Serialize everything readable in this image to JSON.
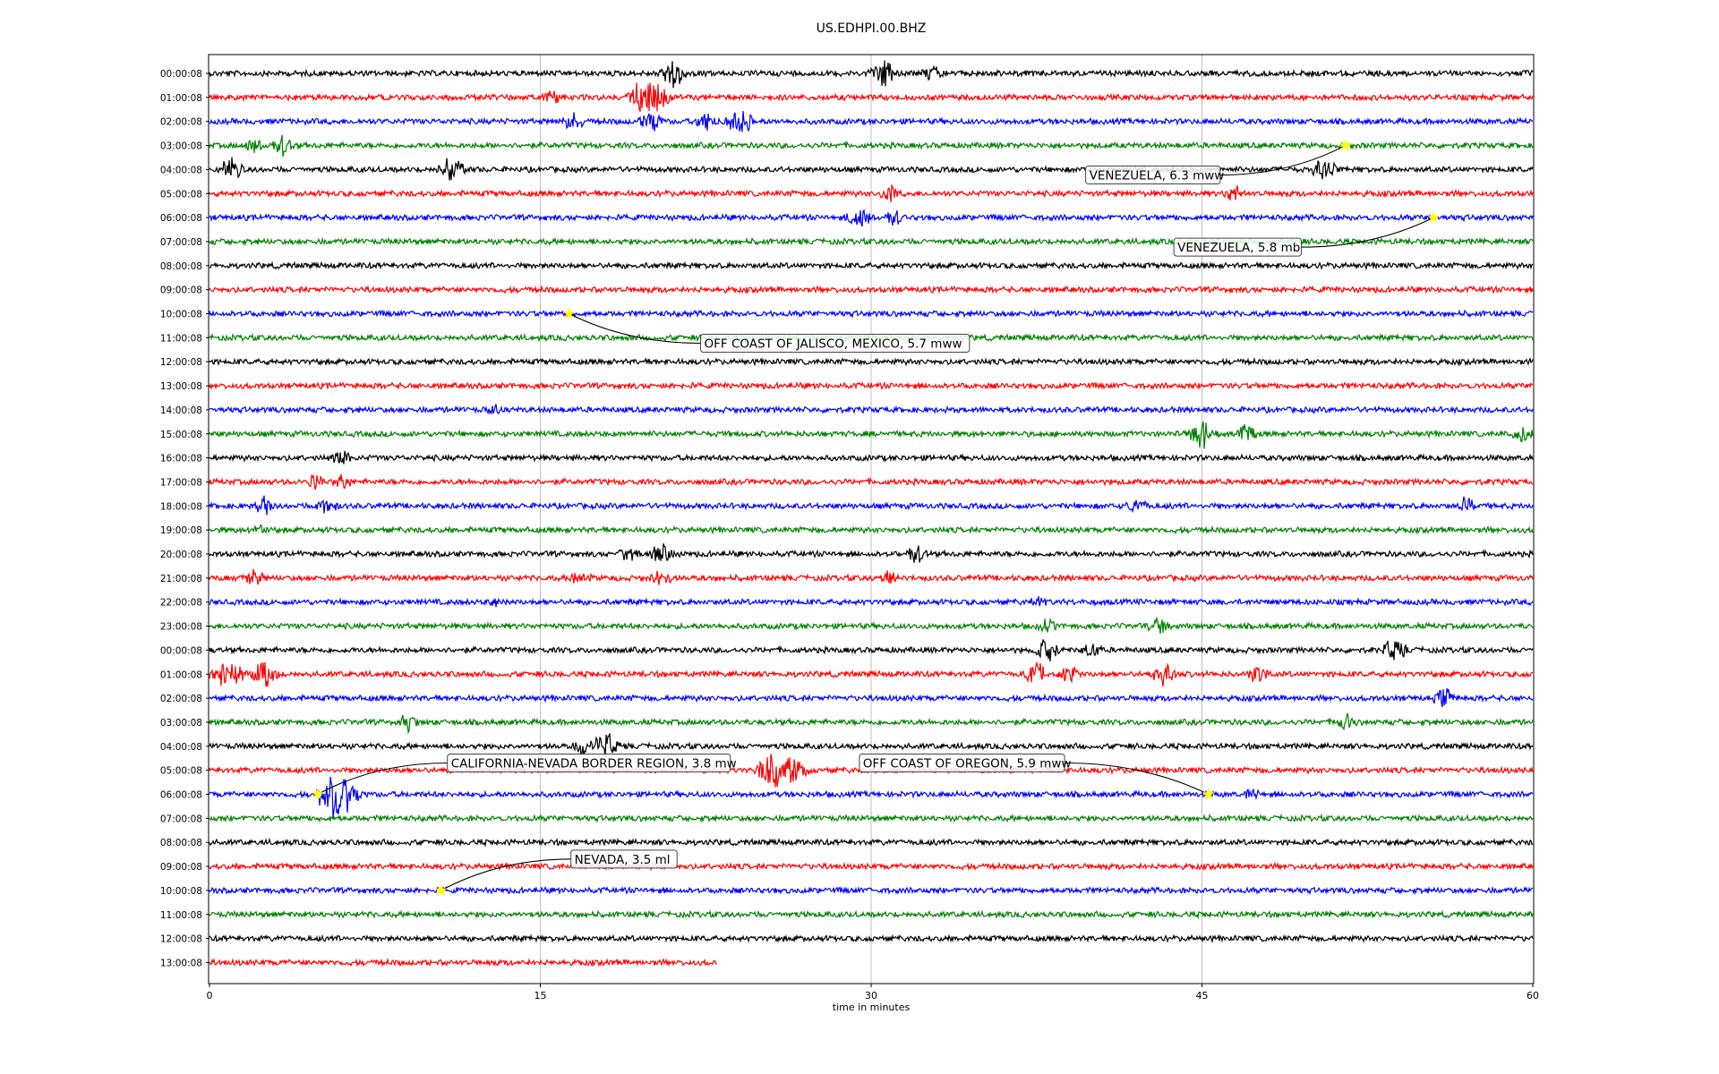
{
  "chart_data": {
    "type": "line",
    "title": "US.EDHPI.00.BHZ",
    "xlabel": "time in minutes",
    "ylabel": "",
    "xlim": [
      0,
      60
    ],
    "xticks": [
      "0",
      "15",
      "30",
      "45",
      "60"
    ],
    "xtick_values": [
      0,
      15,
      30,
      45,
      60
    ],
    "grid": "vertical lines at x ticks",
    "color_cycle": [
      "#000000",
      "#ff0000",
      "#0000ff",
      "#008000"
    ],
    "rows": [
      "00:00:08",
      "01:00:08",
      "02:00:08",
      "03:00:08",
      "04:00:08",
      "05:00:08",
      "06:00:08",
      "07:00:08",
      "08:00:08",
      "09:00:08",
      "10:00:08",
      "11:00:08",
      "12:00:08",
      "13:00:08",
      "14:00:08",
      "15:00:08",
      "16:00:08",
      "17:00:08",
      "18:00:08",
      "19:00:08",
      "20:00:08",
      "21:00:08",
      "22:00:08",
      "23:00:08",
      "00:00:08",
      "01:00:08",
      "02:00:08",
      "03:00:08",
      "04:00:08",
      "05:00:08",
      "06:00:08",
      "07:00:08",
      "08:00:08",
      "09:00:08",
      "10:00:08",
      "11:00:08",
      "12:00:08",
      "13:00:08"
    ],
    "last_row_end_minute": 23,
    "bursts": [
      {
        "row": 0,
        "minute": 21,
        "amp": 1.0
      },
      {
        "row": 0,
        "minute": 30.5,
        "amp": 0.9
      },
      {
        "row": 0,
        "minute": 32.8,
        "amp": 0.5
      },
      {
        "row": 1,
        "minute": 15.5,
        "amp": 0.5
      },
      {
        "row": 1,
        "minute": 19.5,
        "amp": 0.9
      },
      {
        "row": 1,
        "minute": 20.3,
        "amp": 1.0
      },
      {
        "row": 2,
        "minute": 16.5,
        "amp": 0.6
      },
      {
        "row": 2,
        "minute": 20,
        "amp": 0.7
      },
      {
        "row": 2,
        "minute": 22.5,
        "amp": 0.6
      },
      {
        "row": 2,
        "minute": 24,
        "amp": 1.0
      },
      {
        "row": 3,
        "minute": 2,
        "amp": 0.5
      },
      {
        "row": 3,
        "minute": 3.3,
        "amp": 0.6
      },
      {
        "row": 4,
        "minute": 1,
        "amp": 0.7
      },
      {
        "row": 4,
        "minute": 11,
        "amp": 0.9
      },
      {
        "row": 4,
        "minute": 50.5,
        "amp": 0.8
      },
      {
        "row": 5,
        "minute": 30.8,
        "amp": 0.5
      },
      {
        "row": 5,
        "minute": 46.5,
        "amp": 0.5
      },
      {
        "row": 6,
        "minute": 29.5,
        "amp": 0.8
      },
      {
        "row": 6,
        "minute": 31,
        "amp": 0.5
      },
      {
        "row": 14,
        "minute": 13,
        "amp": 0.3
      },
      {
        "row": 15,
        "minute": 45,
        "amp": 1.0
      },
      {
        "row": 15,
        "minute": 47,
        "amp": 0.5
      },
      {
        "row": 15,
        "minute": 59.5,
        "amp": 0.5
      },
      {
        "row": 16,
        "minute": 6,
        "amp": 0.4
      },
      {
        "row": 17,
        "minute": 4.8,
        "amp": 0.4
      },
      {
        "row": 17,
        "minute": 6,
        "amp": 0.4
      },
      {
        "row": 18,
        "minute": 2.5,
        "amp": 0.5
      },
      {
        "row": 18,
        "minute": 5.3,
        "amp": 0.5
      },
      {
        "row": 18,
        "minute": 42,
        "amp": 0.5
      },
      {
        "row": 18,
        "minute": 57,
        "amp": 0.5
      },
      {
        "row": 19,
        "minute": 2.3,
        "amp": 0.4
      },
      {
        "row": 20,
        "minute": 19,
        "amp": 0.5
      },
      {
        "row": 20,
        "minute": 20.5,
        "amp": 0.6
      },
      {
        "row": 20,
        "minute": 32,
        "amp": 0.6
      },
      {
        "row": 21,
        "minute": 2,
        "amp": 0.5
      },
      {
        "row": 21,
        "minute": 16.8,
        "amp": 0.5
      },
      {
        "row": 21,
        "minute": 20.5,
        "amp": 0.6
      },
      {
        "row": 21,
        "minute": 30.8,
        "amp": 0.5
      },
      {
        "row": 22,
        "minute": 13,
        "amp": 0.3
      },
      {
        "row": 22,
        "minute": 37.5,
        "amp": 0.3
      },
      {
        "row": 23,
        "minute": 38,
        "amp": 0.4
      },
      {
        "row": 23,
        "minute": 43,
        "amp": 0.5
      },
      {
        "row": 24,
        "minute": 38,
        "amp": 0.8
      },
      {
        "row": 24,
        "minute": 40,
        "amp": 0.5
      },
      {
        "row": 24,
        "minute": 53.7,
        "amp": 0.8
      },
      {
        "row": 25,
        "minute": 0.5,
        "amp": 0.7
      },
      {
        "row": 25,
        "minute": 1.2,
        "amp": 0.6
      },
      {
        "row": 25,
        "minute": 2.5,
        "amp": 0.9
      },
      {
        "row": 25,
        "minute": 37.5,
        "amp": 0.7
      },
      {
        "row": 25,
        "minute": 39,
        "amp": 0.6
      },
      {
        "row": 25,
        "minute": 43.3,
        "amp": 0.8
      },
      {
        "row": 25,
        "minute": 47.5,
        "amp": 0.6
      },
      {
        "row": 26,
        "minute": 56,
        "amp": 0.6
      },
      {
        "row": 27,
        "minute": 9,
        "amp": 0.5
      },
      {
        "row": 27,
        "minute": 51.5,
        "amp": 0.5
      },
      {
        "row": 28,
        "minute": 17,
        "amp": 0.6
      },
      {
        "row": 28,
        "minute": 18,
        "amp": 0.9
      },
      {
        "row": 29,
        "minute": 25.5,
        "amp": 1.2
      },
      {
        "row": 29,
        "minute": 26.5,
        "amp": 1.0
      },
      {
        "row": 30,
        "minute": 5.5,
        "amp": 1.3
      },
      {
        "row": 30,
        "minute": 6.2,
        "amp": 1.0
      },
      {
        "row": 30,
        "minute": 47.3,
        "amp": 0.3
      }
    ],
    "events": [
      {
        "label": "VENEZUELA, 6.3 mww",
        "row": 3,
        "minute": 51.5
      },
      {
        "label": "VENEZUELA, 5.8 mb",
        "row": 6,
        "minute": 55.5
      },
      {
        "label": "OFF COAST OF JALISCO, MEXICO, 5.7 mww",
        "row": 10,
        "minute": 16.3
      },
      {
        "label": "CALIFORNIA-NEVADA BORDER REGION, 3.8 mw",
        "row": 30,
        "minute": 4.9
      },
      {
        "label": "OFF COAST OF OREGON, 5.9 mww",
        "row": 30,
        "minute": 45.3
      },
      {
        "label": "NEVADA, 3.5 ml",
        "row": 34,
        "minute": 10.5
      }
    ],
    "marker_color": "#ffff00"
  }
}
